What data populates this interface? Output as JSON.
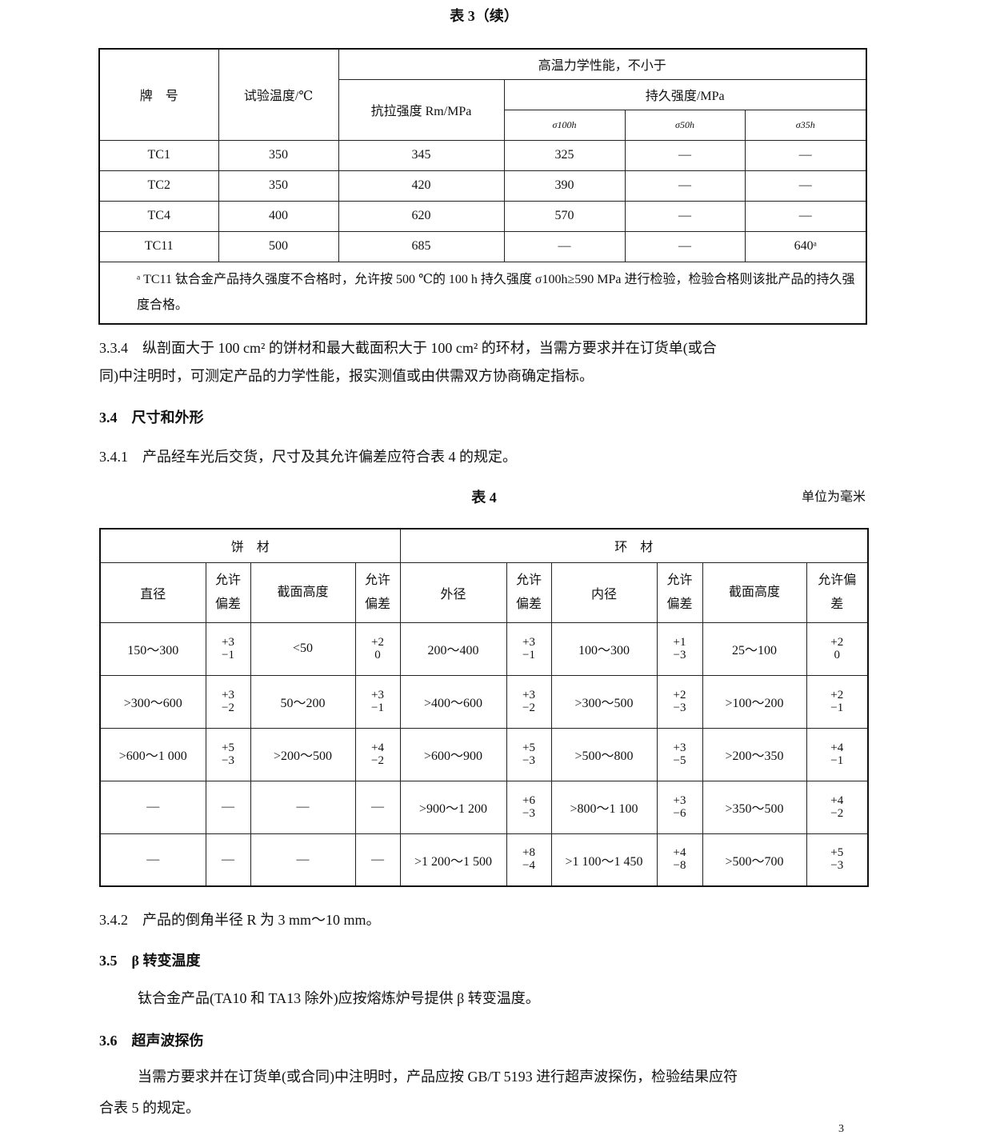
{
  "table3": {
    "title": "表 3（续）",
    "headers": {
      "grade": "牌　号",
      "temp": "试验温度/℃",
      "group": "高温力学性能，不小于",
      "tensile": "抗拉强度 Rm/MPa",
      "rupture": "持久强度/MPa",
      "sigma": [
        "σ100h",
        "σ50h",
        "σ35h"
      ]
    },
    "rows": [
      [
        "TC1",
        "350",
        "345",
        "325",
        "—",
        "—"
      ],
      [
        "TC2",
        "350",
        "420",
        "390",
        "—",
        "—"
      ],
      [
        "TC4",
        "400",
        "620",
        "570",
        "—",
        "—"
      ],
      [
        "TC11",
        "500",
        "685",
        "—",
        "—",
        "640ᵃ"
      ]
    ],
    "footnote": "ᵃ TC11 钛合金产品持久强度不合格时，允许按 500 ℃的 100 h 持久强度 σ100h≥590 MPa 进行检验，检验合格则该批产品的持久强度合格。"
  },
  "paragraphs": {
    "p334_line1": "3.3.4　纵剖面大于 100 cm² 的饼材和最大截面积大于 100 cm² 的环材，当需方要求并在订货单(或合",
    "p334_line2": "同)中注明时，可测定产品的力学性能，报实测值或由供需双方协商确定指标。",
    "s34": "3.4　尺寸和外形",
    "p341": "3.4.1　产品经车光后交货，尺寸及其允许偏差应符合表 4 的规定。",
    "p342": "3.4.2　产品的倒角半径 R 为 3 mm～10 mm。",
    "s35": "3.5　β 转变温度",
    "p35": "钛合金产品(TA10 和 TA13 除外)应按熔炼炉号提供 β 转变温度。",
    "s36": "3.6　超声波探伤",
    "p36_line1": "当需方要求并在订货单(或合同)中注明时，产品应按 GB/T 5193 进行超声波探伤，检验结果应符",
    "p36_line2": "合表 5 的规定。",
    "page_number": "3"
  },
  "table4": {
    "title": "表 4",
    "unit": "单位为毫米",
    "groups": [
      "饼　材",
      "环　材"
    ],
    "headers": [
      "直径",
      "允许偏差",
      "截面高度",
      "允许偏差",
      "外径",
      "允许偏差",
      "内径",
      "允许偏差",
      "截面高度",
      "允许偏差"
    ],
    "rows": [
      [
        "150～300",
        [
          "+3",
          "−1"
        ],
        "<50",
        [
          "+2",
          "0"
        ],
        "200～400",
        [
          "+3",
          "−1"
        ],
        "100～300",
        [
          "+1",
          "−3"
        ],
        "25～100",
        [
          "+2",
          "0"
        ]
      ],
      [
        ">300～600",
        [
          "+3",
          "−2"
        ],
        "50～200",
        [
          "+3",
          "−1"
        ],
        ">400～600",
        [
          "+3",
          "−2"
        ],
        ">300～500",
        [
          "+2",
          "−3"
        ],
        ">100～200",
        [
          "+2",
          "−1"
        ]
      ],
      [
        ">600～1 000",
        [
          "+5",
          "−3"
        ],
        ">200～500",
        [
          "+4",
          "−2"
        ],
        ">600～900",
        [
          "+5",
          "−3"
        ],
        ">500～800",
        [
          "+3",
          "−5"
        ],
        ">200～350",
        [
          "+4",
          "−1"
        ]
      ],
      [
        "—",
        "—",
        "—",
        "—",
        ">900～1 200",
        [
          "+6",
          "−3"
        ],
        ">800～1 100",
        [
          "+3",
          "−6"
        ],
        ">350～500",
        [
          "+4",
          "−2"
        ]
      ],
      [
        "—",
        "—",
        "—",
        "—",
        ">1 200～1 500",
        [
          "+8",
          "−4"
        ],
        ">1 100～1 450",
        [
          "+4",
          "−8"
        ],
        ">500～700",
        [
          "+5",
          "−3"
        ]
      ]
    ]
  }
}
